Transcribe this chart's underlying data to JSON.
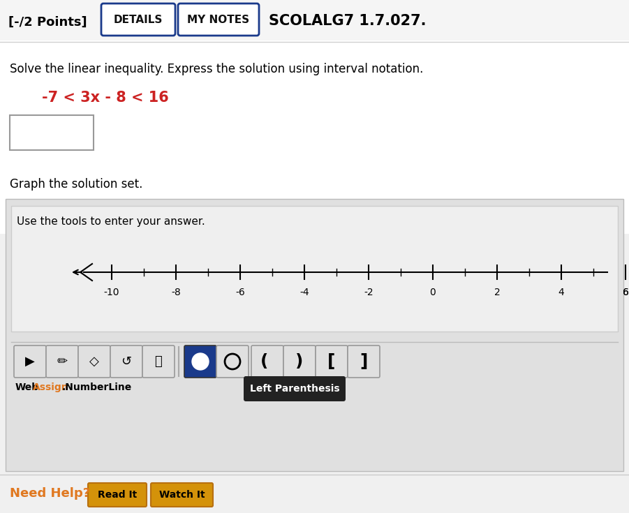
{
  "bg_color": "#e8e8e8",
  "white": "#ffffff",
  "light_gray": "#f0f0f0",
  "medium_gray": "#d0d0d0",
  "dark_gray": "#888888",
  "header_text": "[-/2 Points]",
  "details_btn": "DETAILS",
  "mynotes_btn": "MY NOTES",
  "course_code": "SCOLALG7 1.7.027.",
  "problem_text": "Solve the linear inequality. Express the solution using interval notation.",
  "inequality": "-7 < 3x - 8 < 16",
  "graph_label": "Graph the solution set.",
  "tools_label": "Use the tools to enter your answer.",
  "tick_labels": [
    -10,
    -8,
    -6,
    -4,
    -2,
    0,
    2,
    4,
    6
  ],
  "webassign_web": "Web",
  "webassign_assign": "Assign",
  "webassign_dot": ".",
  "numberline_text": "NumberLine",
  "left_paren_tooltip": "Left Parenthesis",
  "need_help_text": "Need Help?",
  "read_it_text": "Read It",
  "watch_it_text": "Watch It",
  "orange_color": "#e07820",
  "dark_red_color": "#cc2222",
  "blue_color": "#1a3a8b",
  "tooltip_bg": "#222222",
  "panel_outer_bg": "#e0e0e0",
  "panel_inner_bg": "#efefef",
  "btn_bg": "#e8e8e8",
  "btn_selected_bg": "#1a3a8b",
  "read_watch_bg": "#d4920a",
  "header_bg": "#e8e8e8"
}
